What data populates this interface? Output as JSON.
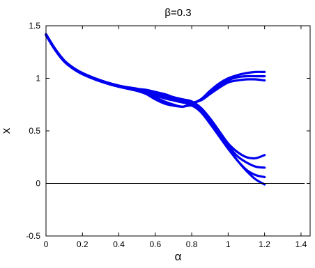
{
  "chart_data": {
    "type": "line",
    "title": "β=0.3",
    "xlabel": "α",
    "ylabel": "x",
    "xlim": [
      0,
      1.45
    ],
    "ylim": [
      -0.5,
      1.5
    ],
    "x_ticks": [
      0,
      0.2,
      0.4,
      0.6,
      0.8,
      1,
      1.2,
      1.4
    ],
    "x_tick_labels": [
      "0",
      "0.2",
      "0.4",
      "0.6",
      "0.8",
      "1",
      "1.2",
      "1.4"
    ],
    "y_ticks": [
      -0.5,
      0,
      0.5,
      1,
      1.5
    ],
    "y_tick_labels": [
      "-0.5",
      "0",
      "0.5",
      "1",
      "1.5"
    ],
    "grid": false,
    "legend": "none",
    "zero_line": {
      "y": 0,
      "x_range": [
        0,
        1.42
      ],
      "color": "#000000"
    },
    "series_color": "#0000ee",
    "series": [
      {
        "x": [
          0,
          0.05,
          0.1,
          0.15,
          0.2,
          0.3,
          0.4,
          0.5,
          0.55,
          0.6,
          0.65,
          0.7,
          0.75,
          0.8,
          0.85,
          0.9,
          0.95,
          1.0,
          1.05,
          1.1,
          1.15,
          1.2
        ],
        "y": [
          1.42,
          1.28,
          1.17,
          1.1,
          1.05,
          0.98,
          0.93,
          0.9,
          0.89,
          0.87,
          0.85,
          0.82,
          0.79,
          0.76,
          0.8,
          0.88,
          0.95,
          1.0,
          1.03,
          1.05,
          1.06,
          1.06
        ]
      },
      {
        "x": [
          0,
          0.05,
          0.1,
          0.15,
          0.2,
          0.3,
          0.4,
          0.5,
          0.55,
          0.6,
          0.65,
          0.7,
          0.75,
          0.8,
          0.85,
          0.9,
          0.95,
          1.0,
          1.05,
          1.1,
          1.15,
          1.2
        ],
        "y": [
          1.41,
          1.27,
          1.16,
          1.09,
          1.04,
          0.97,
          0.92,
          0.89,
          0.87,
          0.84,
          0.81,
          0.79,
          0.78,
          0.77,
          0.79,
          0.85,
          0.91,
          0.96,
          0.98,
          0.99,
          0.99,
          0.98
        ]
      },
      {
        "x": [
          0,
          0.05,
          0.1,
          0.15,
          0.2,
          0.3,
          0.4,
          0.5,
          0.55,
          0.6,
          0.65,
          0.7,
          0.75,
          0.8,
          0.85,
          0.9,
          0.95,
          1.0,
          1.05,
          1.1,
          1.15,
          1.2
        ],
        "y": [
          1.42,
          1.28,
          1.17,
          1.1,
          1.05,
          0.98,
          0.93,
          0.89,
          0.86,
          0.82,
          0.78,
          0.75,
          0.73,
          0.76,
          0.8,
          0.87,
          0.93,
          0.98,
          1.01,
          1.02,
          1.02,
          1.02
        ]
      },
      {
        "x": [
          0,
          0.05,
          0.1,
          0.15,
          0.2,
          0.3,
          0.4,
          0.5,
          0.55,
          0.6,
          0.65,
          0.7,
          0.75,
          0.8,
          0.85,
          0.9,
          0.95,
          1.0,
          1.05,
          1.1,
          1.15,
          1.2
        ],
        "y": [
          1.41,
          1.27,
          1.16,
          1.09,
          1.04,
          0.97,
          0.92,
          0.89,
          0.88,
          0.86,
          0.84,
          0.82,
          0.8,
          0.78,
          0.72,
          0.62,
          0.5,
          0.38,
          0.3,
          0.25,
          0.24,
          0.27
        ]
      },
      {
        "x": [
          0,
          0.05,
          0.1,
          0.15,
          0.2,
          0.3,
          0.4,
          0.5,
          0.55,
          0.6,
          0.65,
          0.7,
          0.75,
          0.8,
          0.85,
          0.9,
          0.95,
          1.0,
          1.05,
          1.1,
          1.15,
          1.2
        ],
        "y": [
          1.42,
          1.28,
          1.17,
          1.1,
          1.05,
          0.98,
          0.93,
          0.9,
          0.88,
          0.85,
          0.82,
          0.79,
          0.77,
          0.75,
          0.7,
          0.6,
          0.48,
          0.36,
          0.26,
          0.2,
          0.16,
          0.15
        ]
      },
      {
        "x": [
          0,
          0.05,
          0.1,
          0.15,
          0.2,
          0.3,
          0.4,
          0.5,
          0.55,
          0.6,
          0.65,
          0.7,
          0.75,
          0.8,
          0.85,
          0.9,
          0.95,
          1.0,
          1.05,
          1.1,
          1.15,
          1.2
        ],
        "y": [
          1.41,
          1.27,
          1.16,
          1.09,
          1.04,
          0.97,
          0.92,
          0.88,
          0.85,
          0.8,
          0.76,
          0.74,
          0.73,
          0.74,
          0.68,
          0.57,
          0.45,
          0.33,
          0.22,
          0.13,
          0.08,
          0.06
        ]
      },
      {
        "x": [
          0,
          0.05,
          0.1,
          0.15,
          0.2,
          0.3,
          0.4,
          0.5,
          0.55,
          0.6,
          0.65,
          0.7,
          0.75,
          0.8,
          0.85,
          0.9,
          0.95,
          1.0,
          1.05,
          1.1,
          1.15,
          1.2
        ],
        "y": [
          1.42,
          1.28,
          1.17,
          1.1,
          1.05,
          0.98,
          0.93,
          0.9,
          0.88,
          0.86,
          0.83,
          0.8,
          0.78,
          0.76,
          0.69,
          0.58,
          0.46,
          0.34,
          0.22,
          0.12,
          0.04,
          -0.01
        ]
      }
    ]
  }
}
